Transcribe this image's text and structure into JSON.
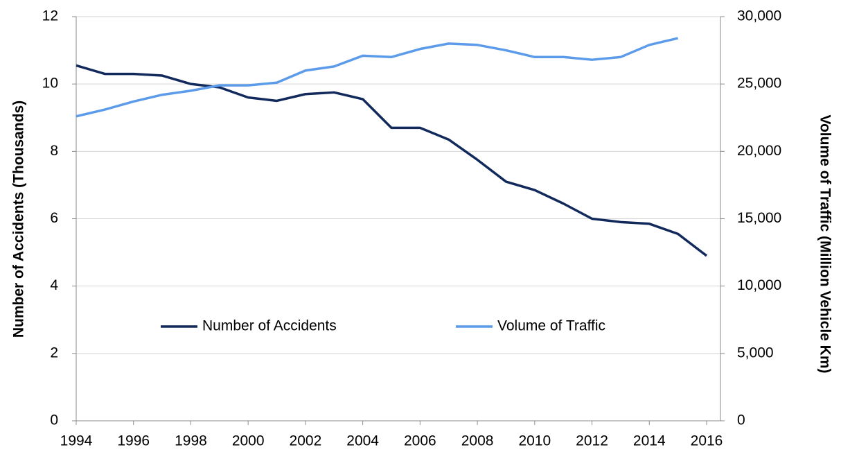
{
  "chart_data": {
    "type": "line",
    "x": [
      1994,
      1995,
      1996,
      1997,
      1998,
      1999,
      2000,
      2001,
      2002,
      2003,
      2004,
      2005,
      2006,
      2007,
      2008,
      2009,
      2010,
      2011,
      2012,
      2013,
      2014,
      2015,
      2016
    ],
    "xlim": [
      1994,
      2016
    ],
    "xticks": [
      1994,
      1996,
      1998,
      2000,
      2002,
      2004,
      2006,
      2008,
      2010,
      2012,
      2014,
      2016
    ],
    "ylabel": "Number of Accidents  (Thousands)",
    "y2label": "Volume of Traffic  (Million Vehicle Km)",
    "ylim": [
      0,
      12
    ],
    "yticks": [
      0,
      2,
      4,
      6,
      8,
      10,
      12
    ],
    "y2lim": [
      0,
      30000
    ],
    "y2ticks": [
      0,
      {
        "value": 5000,
        "label": "5,000"
      },
      {
        "value": 10000,
        "label": "10,000"
      },
      {
        "value": 15000,
        "label": "15,000"
      },
      {
        "value": 20000,
        "label": "20,000"
      },
      {
        "value": 25000,
        "label": "25,000"
      },
      {
        "value": 30000,
        "label": "30,000"
      }
    ],
    "grid": true,
    "legend": "center",
    "series": [
      {
        "name": "Number of Accidents",
        "color": "#12295c",
        "values": [
          10.55,
          10.3,
          10.3,
          10.25,
          10.0,
          9.9,
          9.6,
          9.5,
          9.7,
          9.75,
          9.55,
          8.7,
          8.7,
          8.35,
          7.75,
          7.1,
          6.85,
          6.45,
          6.0,
          5.9,
          5.85,
          5.55,
          4.9
        ]
      },
      {
        "name": "Volume of Traffic",
        "color": "#5b9bea",
        "axis": "y2",
        "values": [
          22600,
          23100,
          23700,
          24200,
          24500,
          24900,
          24900,
          25100,
          26000,
          26300,
          27100,
          27000,
          27600,
          28000,
          27900,
          27500,
          27000,
          27000,
          26800,
          27000,
          27900,
          28400,
          null
        ]
      }
    ]
  }
}
